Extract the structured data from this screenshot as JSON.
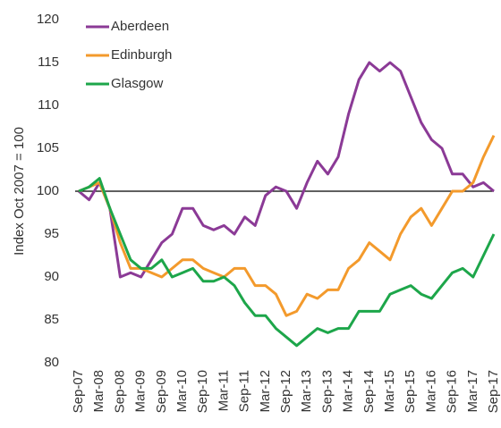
{
  "chart_data": {
    "type": "line",
    "y_label": "Index Oct 2007 = 100",
    "categories": [
      "Sep-07",
      null,
      "Mar-08",
      null,
      "Sep-08",
      null,
      "Mar-09",
      null,
      "Sep-09",
      null,
      "Mar-10",
      null,
      "Sep-10",
      null,
      "Mar-11",
      null,
      "Sep-11",
      null,
      "Mar-12",
      null,
      "Sep-12",
      null,
      "Mar-13",
      null,
      "Sep-13",
      null,
      "Mar-14",
      null,
      "Sep-14",
      null,
      "Mar-15",
      null,
      "Sep-15",
      null,
      "Mar-16",
      null,
      "Sep-16",
      null,
      "Mar-17",
      null,
      "Sep-17"
    ],
    "series": [
      {
        "name": "Aberdeen",
        "color": "#8b3a96",
        "values": [
          100,
          99,
          101,
          98,
          90,
          90.5,
          90,
          92,
          94,
          95,
          98,
          98,
          96,
          95.5,
          96,
          95,
          97,
          96,
          99.5,
          100.5,
          100,
          98,
          101,
          103.5,
          102,
          104,
          109,
          113,
          115,
          114,
          115,
          114,
          111,
          108,
          106,
          105,
          102,
          102,
          100.5,
          101,
          100
        ]
      },
      {
        "name": "Edinburgh",
        "color": "#f39a2c",
        "values": [
          100,
          100.5,
          101,
          98,
          94,
          91,
          91,
          90.5,
          90,
          91,
          92,
          92,
          91,
          90.5,
          90,
          91,
          91,
          89,
          89,
          88,
          85.5,
          86,
          88,
          87.5,
          88.5,
          88.5,
          91,
          92,
          94,
          93,
          92,
          95,
          97,
          98,
          96,
          98,
          100,
          100,
          101,
          104,
          106.5
        ]
      },
      {
        "name": "Glasgow",
        "color": "#1da64a",
        "values": [
          100,
          100.5,
          101.5,
          98,
          95,
          92,
          91,
          91,
          92,
          90,
          90.5,
          91,
          89.5,
          89.5,
          90,
          89,
          87,
          85.5,
          85.5,
          84,
          83,
          82,
          83,
          84,
          83.5,
          84,
          84,
          86,
          86,
          86,
          88,
          88.5,
          89,
          88,
          87.5,
          89,
          90.5,
          91,
          90,
          92.5,
          95
        ]
      }
    ],
    "ylim": [
      80,
      120
    ],
    "yticks": [
      80,
      85,
      90,
      95,
      100,
      105,
      110,
      115,
      120
    ],
    "hline": 100,
    "grid": false,
    "legend": "top-left"
  }
}
